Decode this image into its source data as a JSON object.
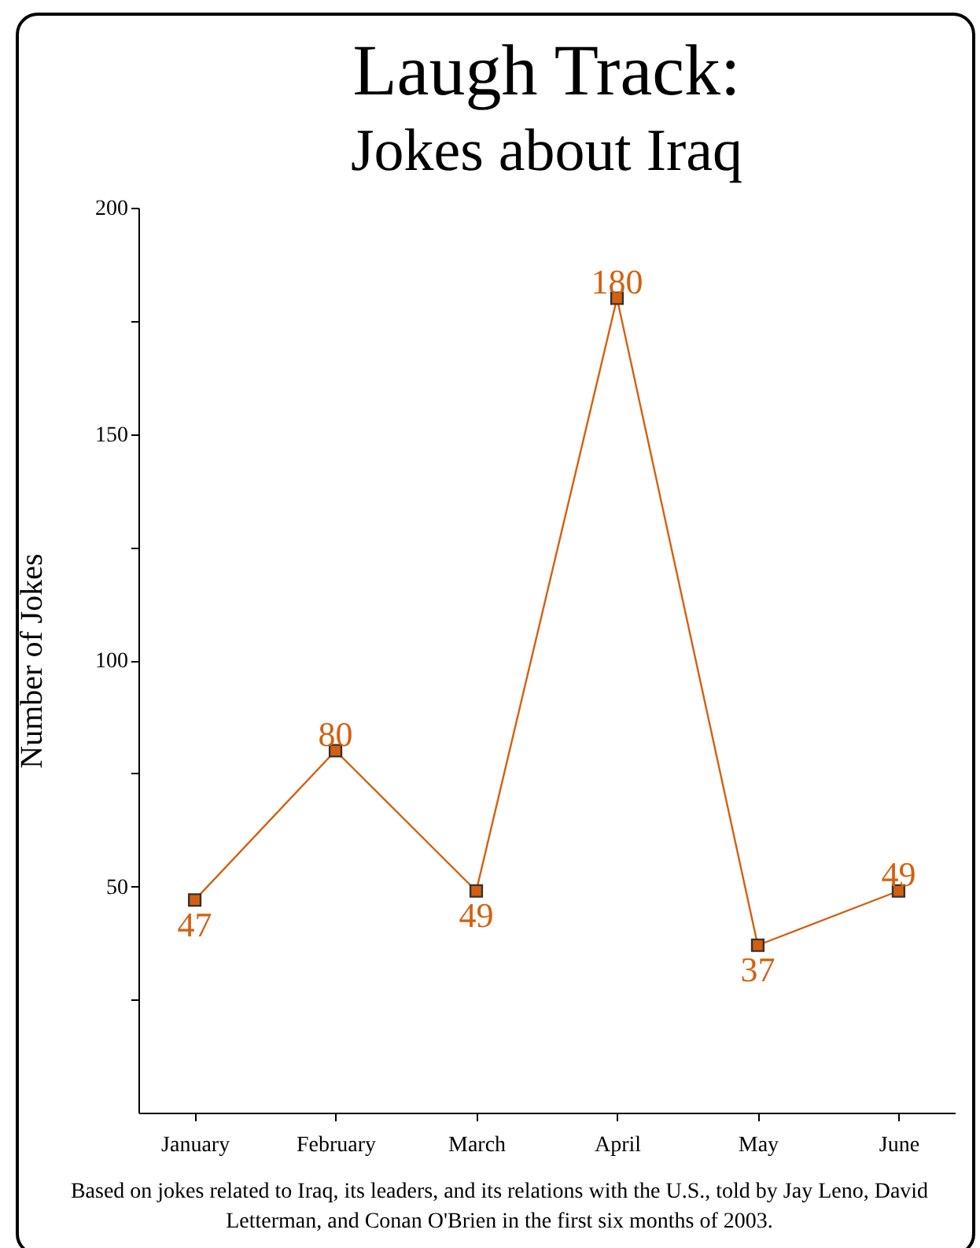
{
  "chart_data": {
    "type": "line",
    "title": "Laugh Track:",
    "subtitle": "Jokes about Iraq",
    "ylabel": "Number of Jokes",
    "categories": [
      "January",
      "February",
      "March",
      "April",
      "May",
      "June"
    ],
    "series": [
      {
        "color": "#d4600f",
        "values": [
          47,
          80,
          49,
          180,
          37,
          49
        ]
      }
    ],
    "ylim": [
      0,
      200
    ],
    "yticks": [
      {
        "value": 25,
        "label": null
      },
      50,
      {
        "value": 75,
        "label": null
      },
      100,
      {
        "value": 125,
        "label": null
      },
      150,
      {
        "value": 175,
        "label": null
      },
      200
    ],
    "grid": false,
    "marker": "square",
    "line_style": "solid",
    "data_labels": true,
    "annotations": [
      "Based on jokes related to Iraq, its leaders, and its relations with the U.S., told by Jay Leno, David Letterman, and Conan O'Brien in the first six months of 2003."
    ]
  }
}
